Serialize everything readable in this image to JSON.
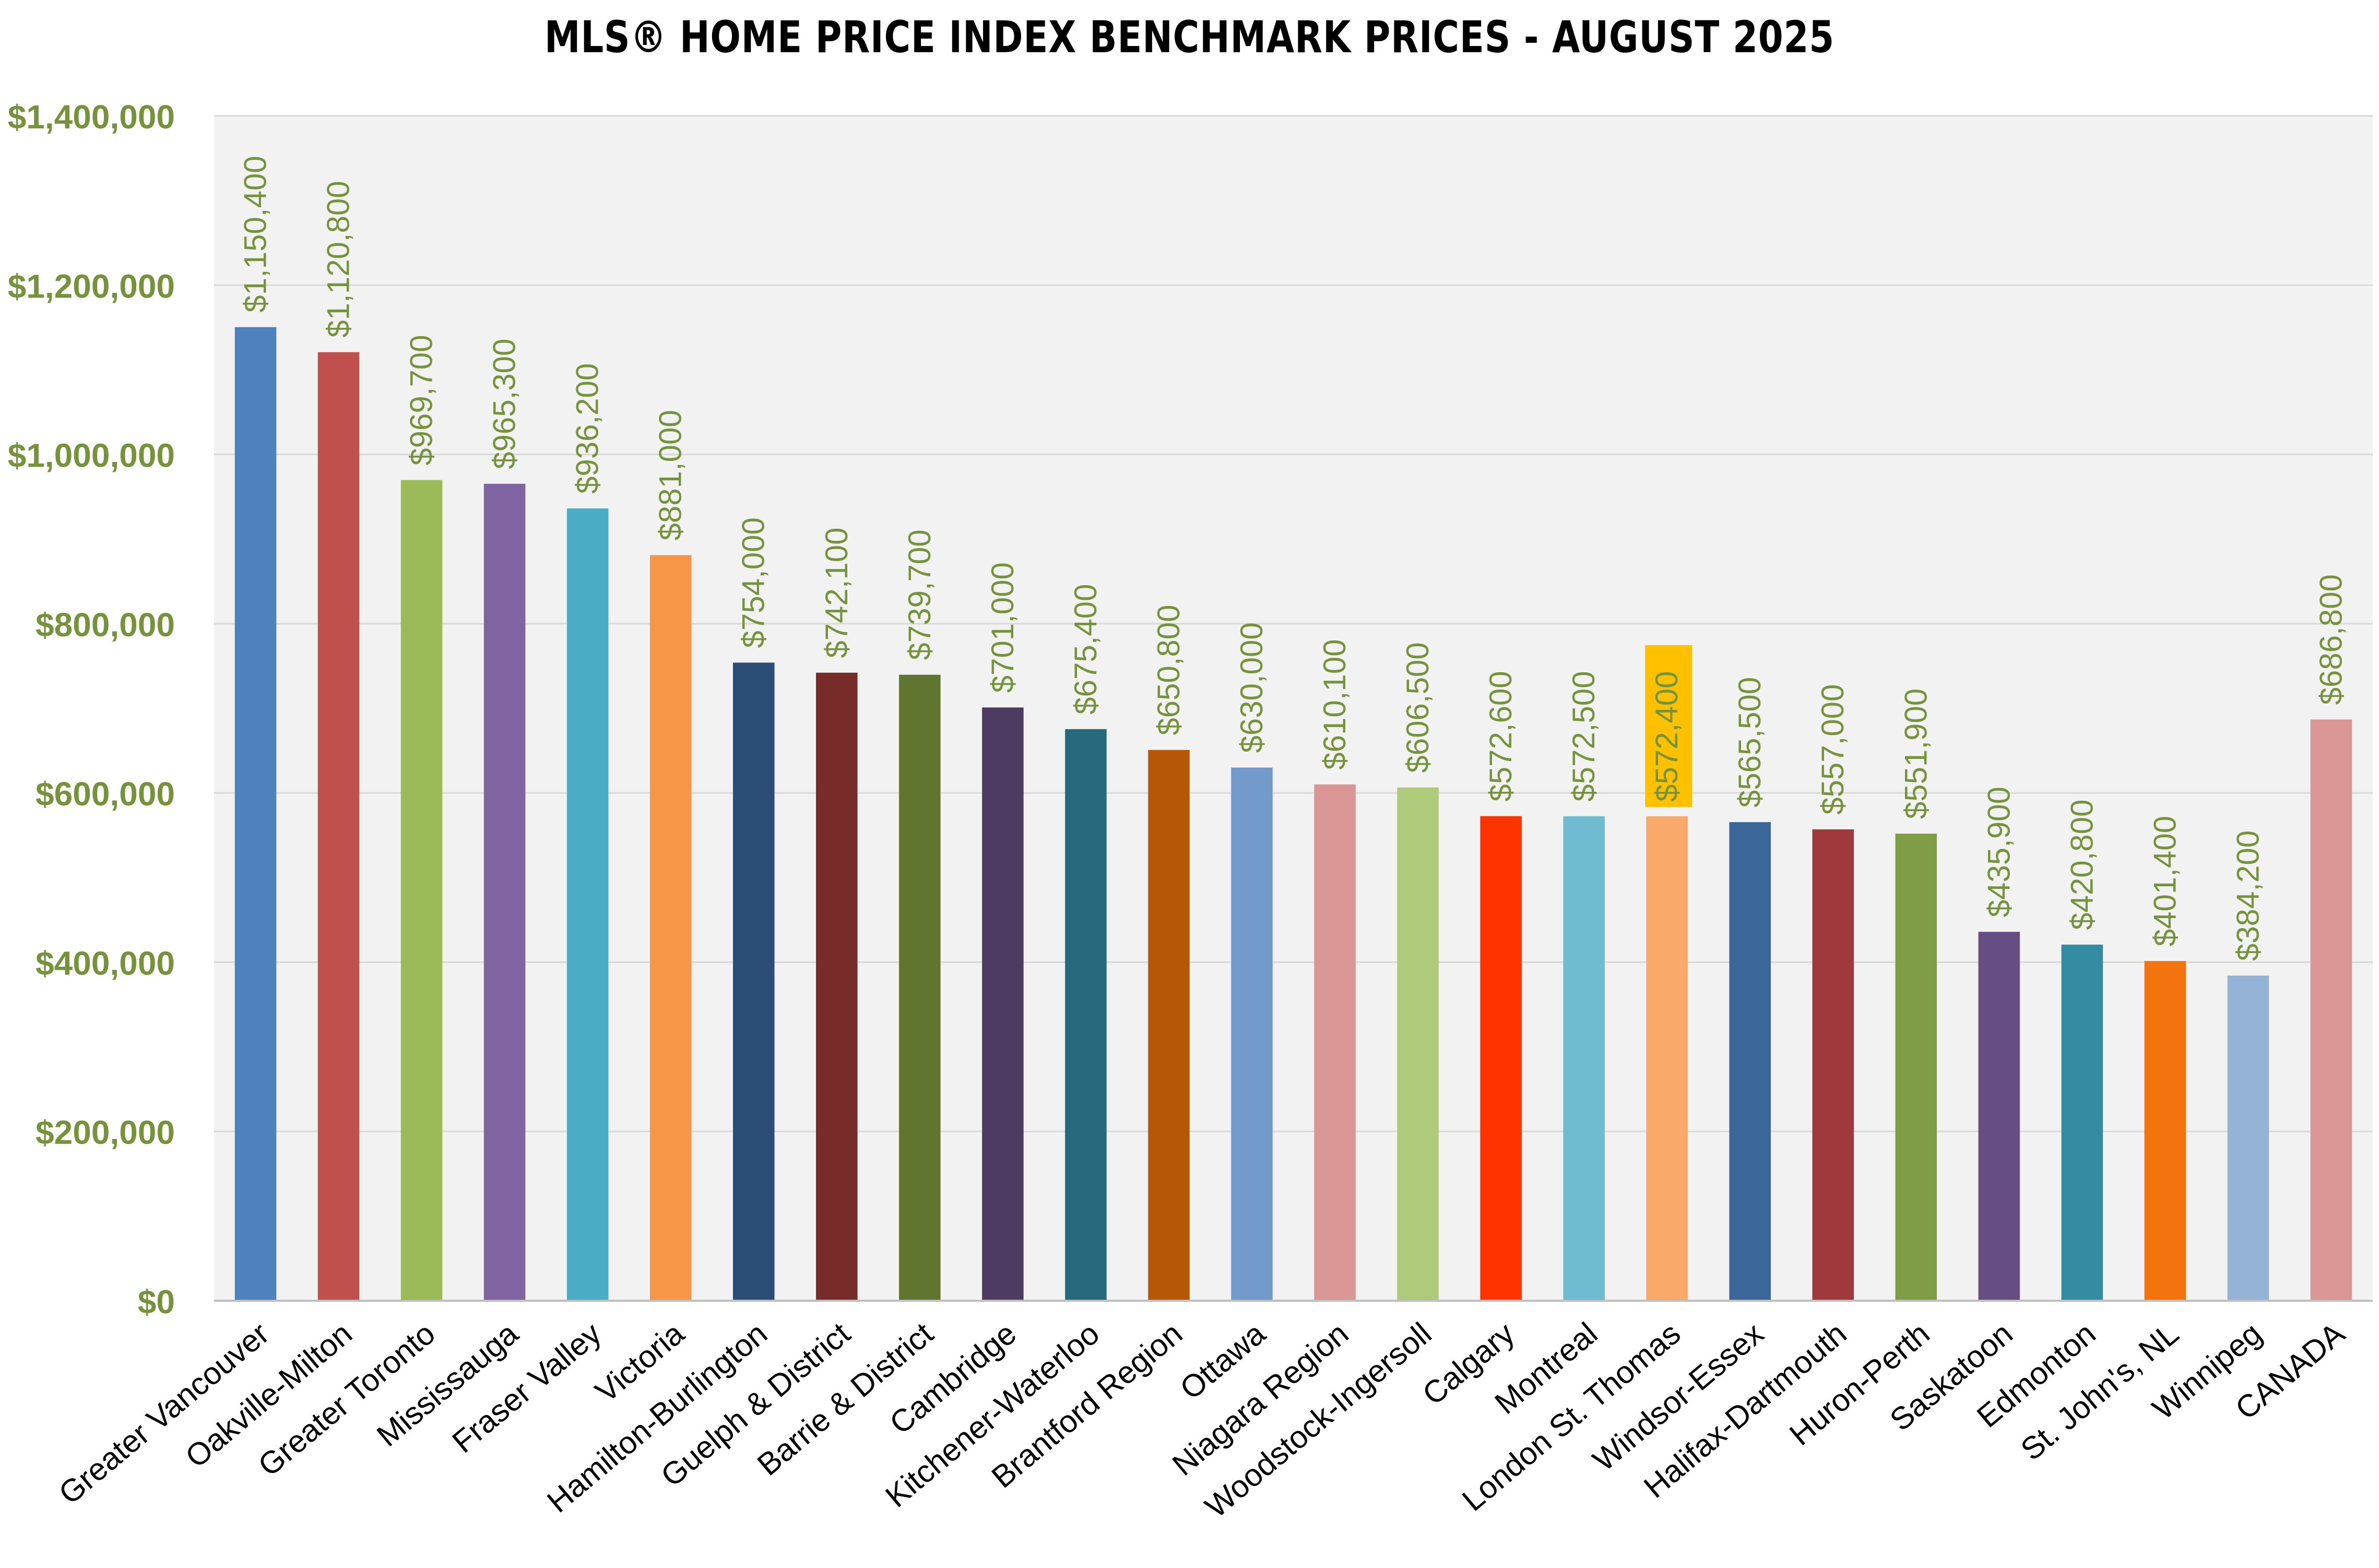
{
  "chart_data": {
    "type": "bar",
    "title": "MLS® HOME PRICE INDEX BENCHMARK PRICES - AUGUST 2025",
    "xlabel": "",
    "ylabel": "",
    "ylim": [
      0,
      1400000
    ],
    "y_ticks": [
      0,
      200000,
      400000,
      600000,
      800000,
      1000000,
      1200000,
      1400000
    ],
    "y_tick_labels": [
      "$0",
      "$200,000",
      "$400,000",
      "$600,000",
      "$800,000",
      "$1,000,000",
      "$1,200,000",
      "$1,400,000"
    ],
    "grid": "horizontal",
    "legend": "none",
    "categories": [
      "Greater Vancouver",
      "Oakville-Milton",
      "Greater Toronto",
      "Mississauga",
      "Fraser Valley",
      "Victoria",
      "Hamilton-Burlington",
      "Guelph & District",
      "Barrie & District",
      "Cambridge",
      "Kitchener-Waterloo",
      "Brantford Region",
      "Ottawa",
      "Niagara Region",
      "Woodstock-Ingersoll",
      "Calgary",
      "Montreal",
      "London St. Thomas",
      "Windsor-Essex",
      "Halifax-Dartmouth",
      "Huron-Perth",
      "Saskatoon",
      "Edmonton",
      "St. John's, NL",
      "Winnipeg",
      "CANADA"
    ],
    "values": [
      1150400,
      1120800,
      969700,
      965300,
      936200,
      881000,
      754000,
      742100,
      739700,
      701000,
      675400,
      650800,
      630000,
      610100,
      606500,
      572600,
      572500,
      572400,
      565500,
      557000,
      551900,
      435900,
      420800,
      401400,
      384200,
      686800
    ],
    "data_labels": [
      "$1,150,400",
      "$1,120,800",
      "$969,700",
      "$965,300",
      "$936,200",
      "$881,000",
      "$754,000",
      "$742,100",
      "$739,700",
      "$701,000",
      "$675,400",
      "$650,800",
      "$630,000",
      "$610,100",
      "$606,500",
      "$572,600",
      "$572,500",
      "$572,400",
      "$565,500",
      "$557,000",
      "$551,900",
      "$435,900",
      "$420,800",
      "$401,400",
      "$384,200",
      "$686,800"
    ],
    "bar_colors": [
      "#4F81BD",
      "#C0504D",
      "#9BBB59",
      "#8064A2",
      "#4BACC6",
      "#F79646",
      "#2C4D75",
      "#772C2A",
      "#5F7530",
      "#4D3B62",
      "#276A7C",
      "#B65708",
      "#729ACA",
      "#D99694",
      "#B0CA7C",
      "#FF3300",
      "#6FBBD2",
      "#F9A96A",
      "#3A669A",
      "#A0393B",
      "#7F9D44",
      "#664D84",
      "#338CA2",
      "#F3740F",
      "#95B3D7",
      "#DA9694"
    ],
    "highlighted_category": "London St. Thomas",
    "highlight_color": "#FFC000",
    "label_color": "#76923C",
    "plot_background": "#F2F2F2",
    "gridline_color": "#D9D9D9"
  }
}
